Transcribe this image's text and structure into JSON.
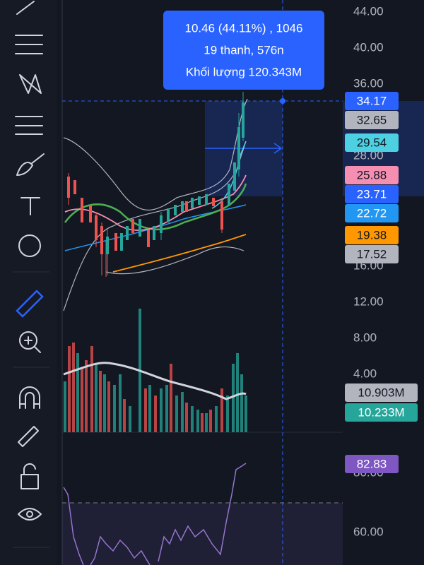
{
  "tooltip": {
    "lines": [
      "10.46 (44.11%) , 1046",
      "19 thanh, 576n",
      "Khối lượng 120.343M"
    ]
  },
  "price_axis": {
    "labels": [
      "44.00",
      "40.00",
      "36.00",
      "28.00",
      "16.00",
      "12.00"
    ]
  },
  "price_badges": [
    {
      "text": "34.17",
      "color": "#2962ff",
      "text_color": "#ffffff"
    },
    {
      "text": "32.65",
      "color": "#b2b5be",
      "text_color": "#131722"
    },
    {
      "text": "29.54",
      "color": "#4dd0e1",
      "text_color": "#131722"
    },
    {
      "text": "25.88",
      "color": "#f48fb1",
      "text_color": "#131722"
    },
    {
      "text": "23.71",
      "color": "#2962ff",
      "text_color": "#ffffff"
    },
    {
      "text": "22.72",
      "color": "#2196f3",
      "text_color": "#ffffff"
    },
    {
      "text": "19.38",
      "color": "#ff9800",
      "text_color": "#131722"
    },
    {
      "text": "17.52",
      "color": "#b2b5be",
      "text_color": "#131722"
    }
  ],
  "volume_axis": {
    "labels": [
      "8.00",
      "4.00"
    ]
  },
  "volume_badges": [
    {
      "text": "10.903M",
      "color": "#b2b5be",
      "text_color": "#131722"
    },
    {
      "text": "10.233M",
      "color": "#26a69a",
      "text_color": "#ffffff"
    }
  ],
  "rsi_axis": {
    "labels": [
      "80.00",
      "60.00"
    ]
  },
  "rsi_badge": {
    "text": "82.83",
    "color": "#7e57c2",
    "text_color": "#ffffff"
  }
}
